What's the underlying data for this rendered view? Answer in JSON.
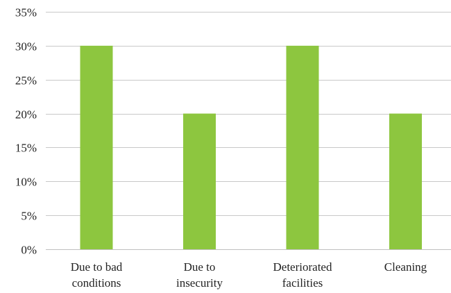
{
  "chart_data": {
    "type": "bar",
    "title": "",
    "xlabel": "",
    "ylabel": "",
    "categories": [
      [
        "Due to bad",
        "conditions"
      ],
      [
        "Due to",
        "insecurity"
      ],
      [
        "Deteriorated",
        "facilities"
      ],
      [
        "Cleaning"
      ]
    ],
    "values": [
      30,
      20,
      30,
      20
    ],
    "ylim": [
      0,
      35
    ],
    "y_ticks": [
      0,
      5,
      10,
      15,
      20,
      25,
      30,
      35
    ],
    "y_tick_labels": [
      "0%",
      "5%",
      "10%",
      "15%",
      "20%",
      "25%",
      "30%",
      "35%"
    ],
    "grid": true,
    "legend": "none",
    "colors": {
      "bar": "#8DC63F",
      "grid": "#c8c8c8",
      "axis": "#bfbfbf",
      "text": "#222222"
    }
  }
}
